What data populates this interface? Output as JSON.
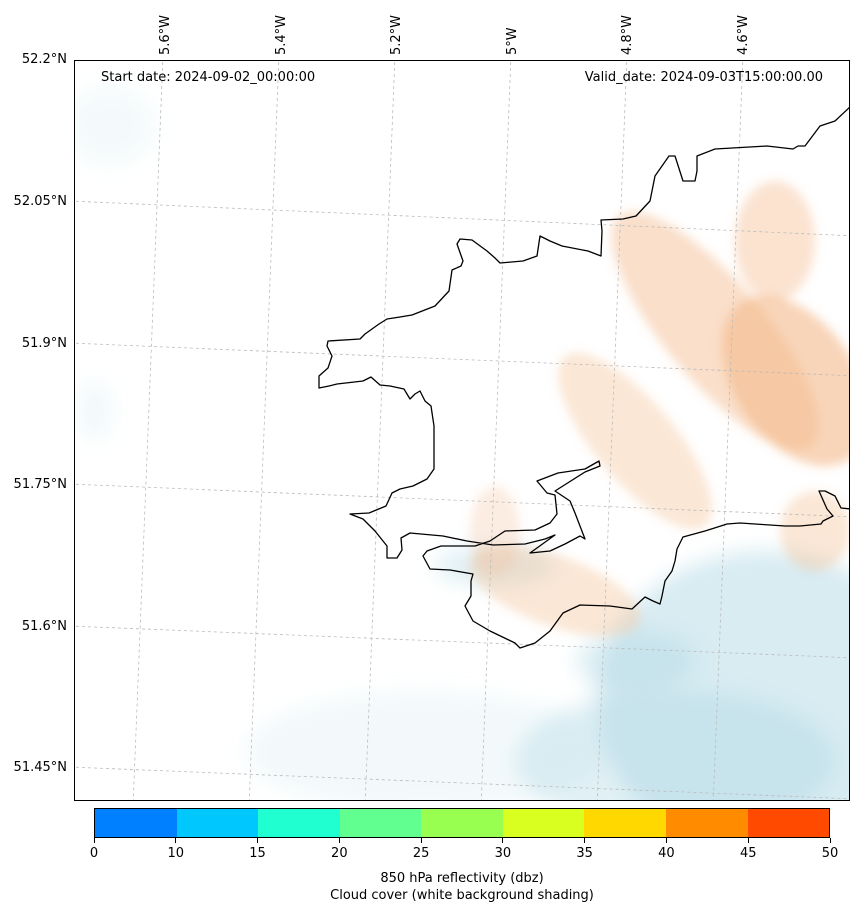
{
  "map": {
    "start_date": "Start date: 2024-09-02_00:00:00",
    "valid_date": "Valid_date: 2024-09-03T15:00:00.00",
    "lon_labels": [
      "5.6°W",
      "5.4°W",
      "5.2°W",
      "5°W",
      "4.8°W",
      "4.6°W"
    ],
    "lat_labels": [
      "52.2°N",
      "52.05°N",
      "51.9°N",
      "51.75°N",
      "51.6°N",
      "51.45°N"
    ],
    "gridlines": true,
    "coastline_color": "#000000",
    "cloud_shading_color": "#a8d5e2",
    "reflectivity_shading_color": "#f4b98a"
  },
  "colorbar": {
    "ticks": [
      "0",
      "10",
      "15",
      "20",
      "25",
      "30",
      "35",
      "40",
      "45",
      "50"
    ],
    "colors": [
      "#0080ff",
      "#00c8ff",
      "#20ffd0",
      "#60ff90",
      "#98ff50",
      "#d8ff20",
      "#ffd800",
      "#ff8c00",
      "#ff4a00"
    ],
    "label_line1": "850 hPa reflectivity (dbz)",
    "label_line2": "Cloud cover (white background shading)"
  }
}
